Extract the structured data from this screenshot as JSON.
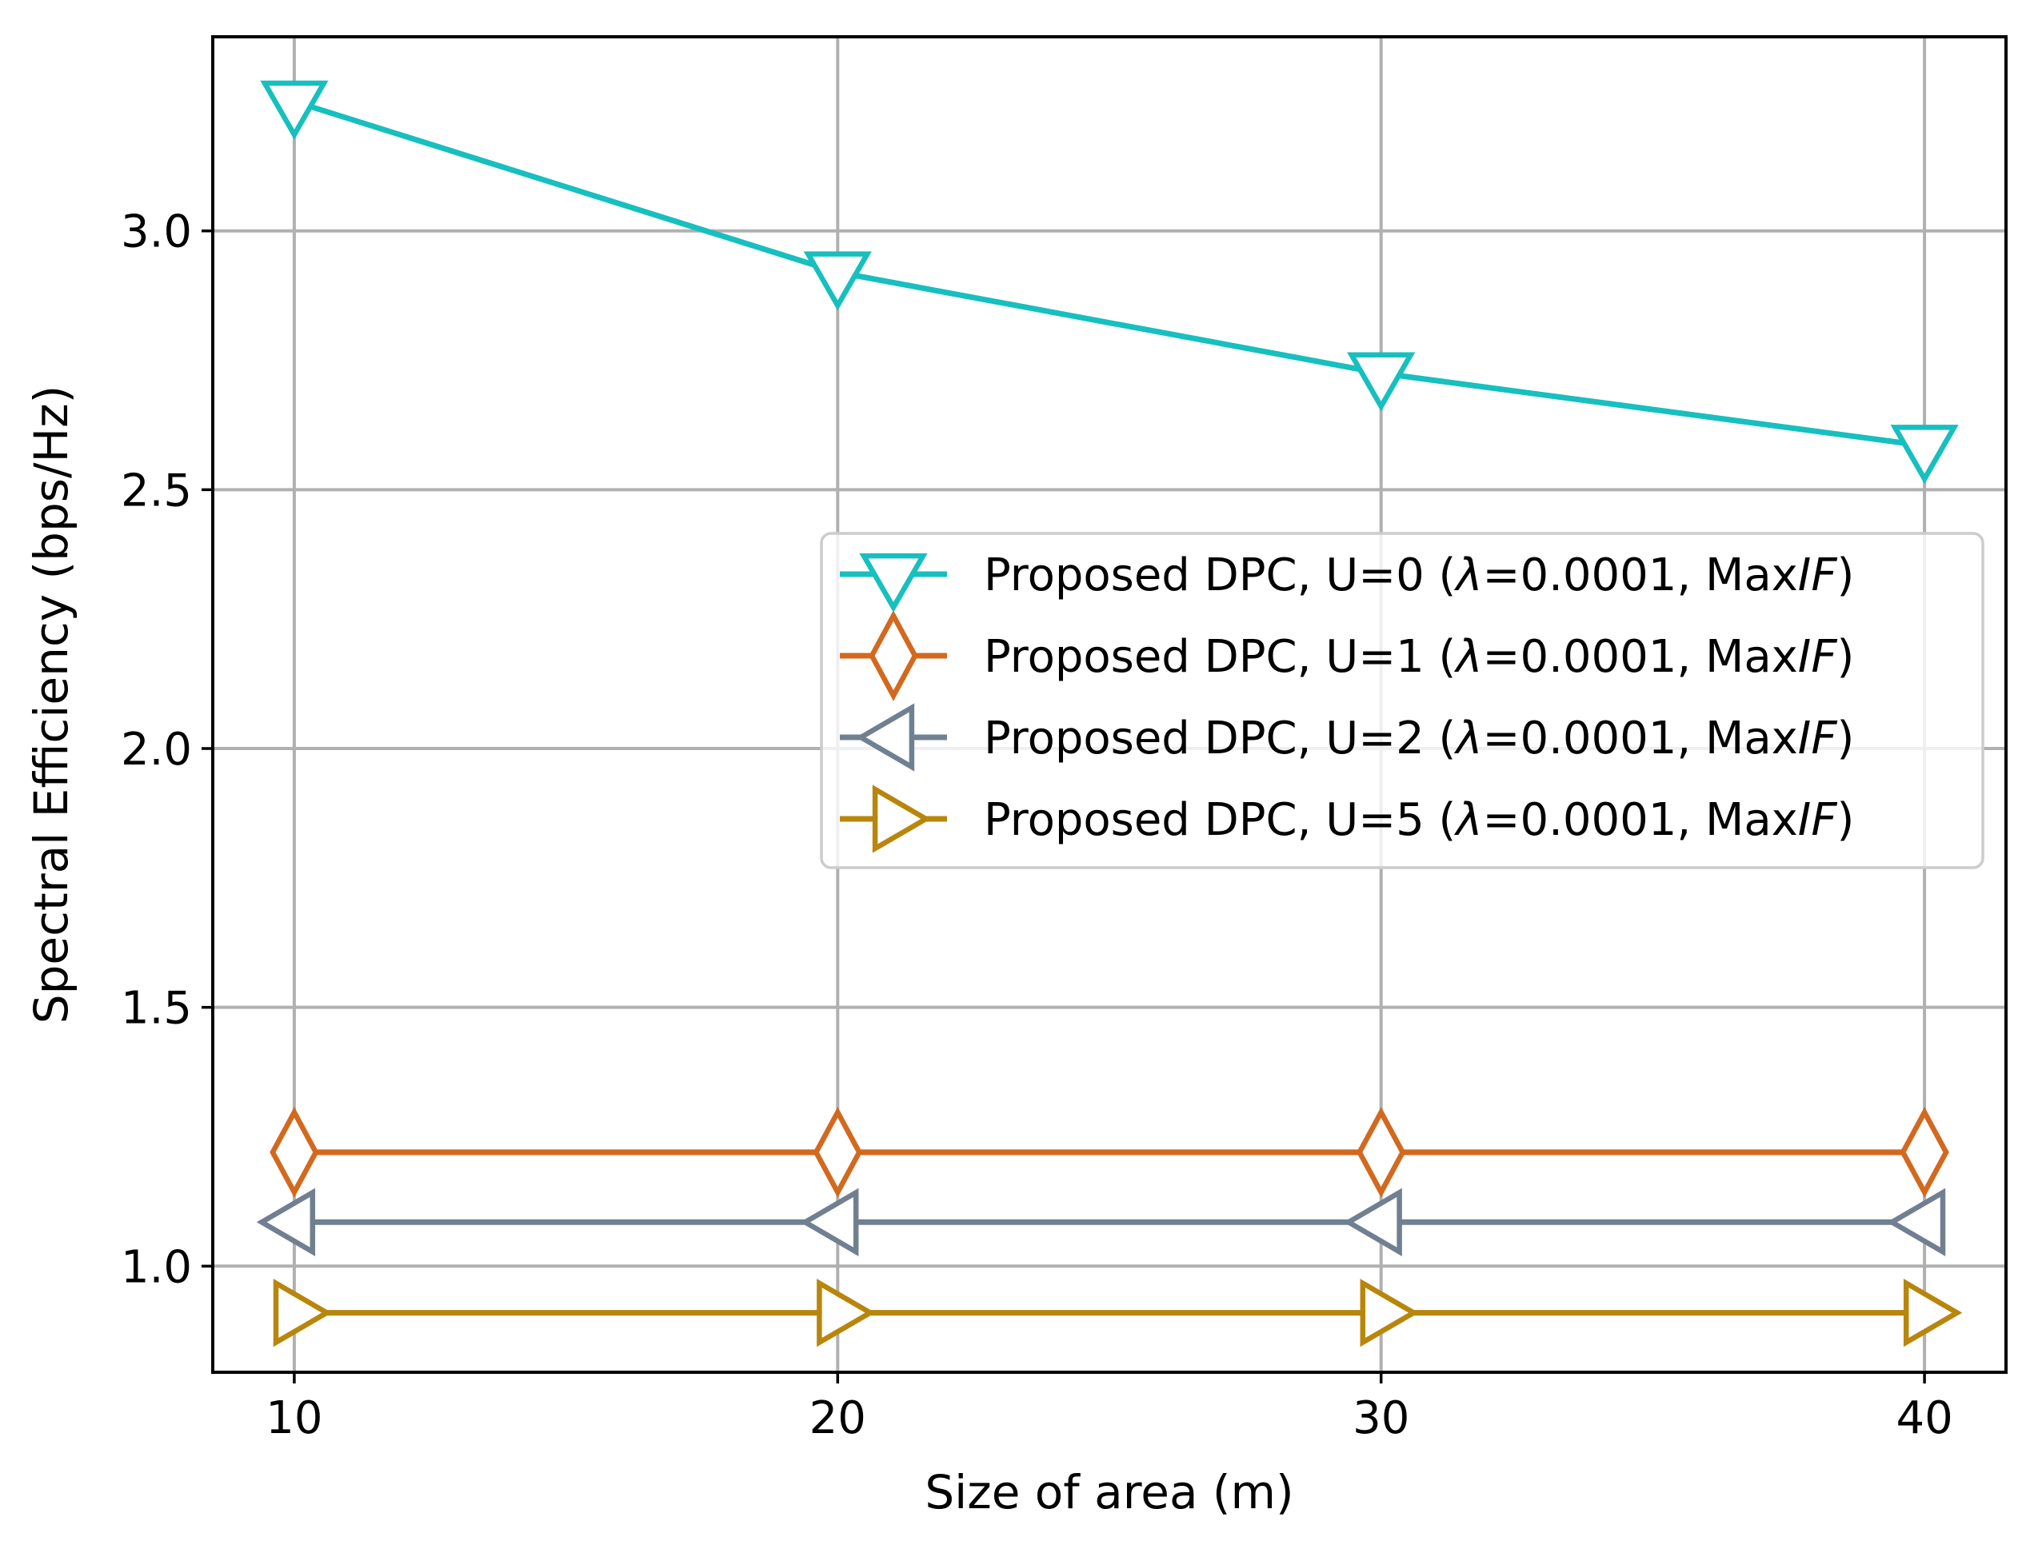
{
  "chart_data": {
    "type": "line",
    "title": "",
    "xlabel": "Size of area (m)",
    "ylabel": "Spectral Efficiency (bps/Hz)",
    "x": [
      10,
      20,
      30,
      40
    ],
    "xticks": [
      10,
      20,
      30,
      40
    ],
    "xtick_labels": [
      "10",
      "20",
      "30",
      "40"
    ],
    "yticks": [
      1.0,
      1.5,
      2.0,
      2.5,
      3.0
    ],
    "ytick_labels": [
      "1.0",
      "1.5",
      "2.0",
      "2.5",
      "3.0"
    ],
    "xlim": [
      8.5,
      41.5
    ],
    "ylim": [
      0.795,
      3.375
    ],
    "grid": true,
    "legend_position": "center-right",
    "series": [
      {
        "name": "Proposed DPC, U=0 (λ=0.0001, MaxIF)",
        "label_prefix": "Proposed DPC, U=0 (",
        "label_lambda": "λ",
        "label_mid": "=0.0001, Max",
        "label_italic": "IF",
        "label_suffix": ")",
        "color": "#17bfbf",
        "marker": "triangle-down",
        "values": [
          3.25,
          2.92,
          2.725,
          2.585
        ]
      },
      {
        "name": "Proposed DPC, U=1 (λ=0.0001, MaxIF)",
        "label_prefix": "Proposed DPC, U=1 (",
        "label_lambda": "λ",
        "label_mid": "=0.0001, Max",
        "label_italic": "IF",
        "label_suffix": ")",
        "color": "#d2691e",
        "marker": "thin-diamond",
        "values": [
          1.22,
          1.22,
          1.22,
          1.22
        ]
      },
      {
        "name": "Proposed DPC, U=2 (λ=0.0001, MaxIF)",
        "label_prefix": "Proposed DPC, U=2 (",
        "label_lambda": "λ",
        "label_mid": "=0.0001, Max",
        "label_italic": "IF",
        "label_suffix": ")",
        "color": "#708090",
        "marker": "triangle-left",
        "values": [
          1.085,
          1.085,
          1.085,
          1.085
        ]
      },
      {
        "name": "Proposed DPC, U=5 (λ=0.0001, MaxIF)",
        "label_prefix": "Proposed DPC, U=5 (",
        "label_lambda": "λ",
        "label_mid": "=0.0001, Max",
        "label_italic": "IF",
        "label_suffix": ")",
        "color": "#b8860b",
        "marker": "triangle-right",
        "values": [
          0.91,
          0.91,
          0.91,
          0.91
        ]
      }
    ]
  }
}
